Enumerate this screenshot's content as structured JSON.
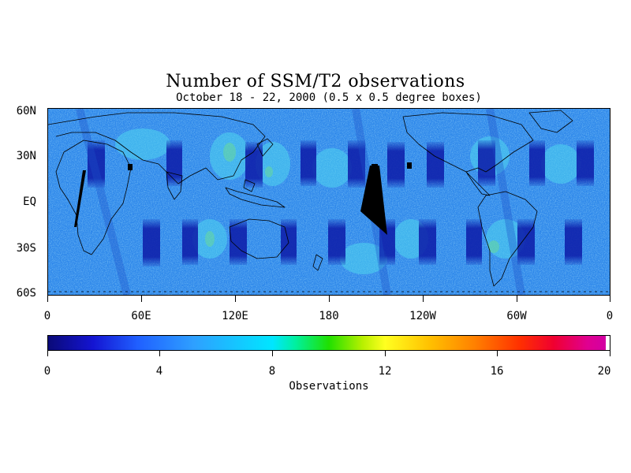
{
  "title": "Number of SSM/T2 observations",
  "subtitle": "October 18 - 22, 2000 (0.5 x 0.5 degree boxes)",
  "map": {
    "y_axis_labels": [
      "60N",
      "30N",
      "EQ",
      "30S",
      "60S"
    ],
    "x_axis_labels": [
      "0",
      "60E",
      "120E",
      "180",
      "120W",
      "60W",
      "0"
    ],
    "lat_range": [
      -60,
      60
    ],
    "lon_range": [
      0,
      360
    ]
  },
  "colorbar": {
    "tick_labels": [
      "0",
      "4",
      "8",
      "12",
      "16",
      "20"
    ],
    "range": [
      0,
      20
    ],
    "label": "Observations",
    "colors": [
      "#0a0a78",
      "#1414d2",
      "#2060ff",
      "#2ea0ff",
      "#00e6ff",
      "#20e000",
      "#ffff20",
      "#ff8000",
      "#f00030",
      "#d000a8"
    ]
  }
}
